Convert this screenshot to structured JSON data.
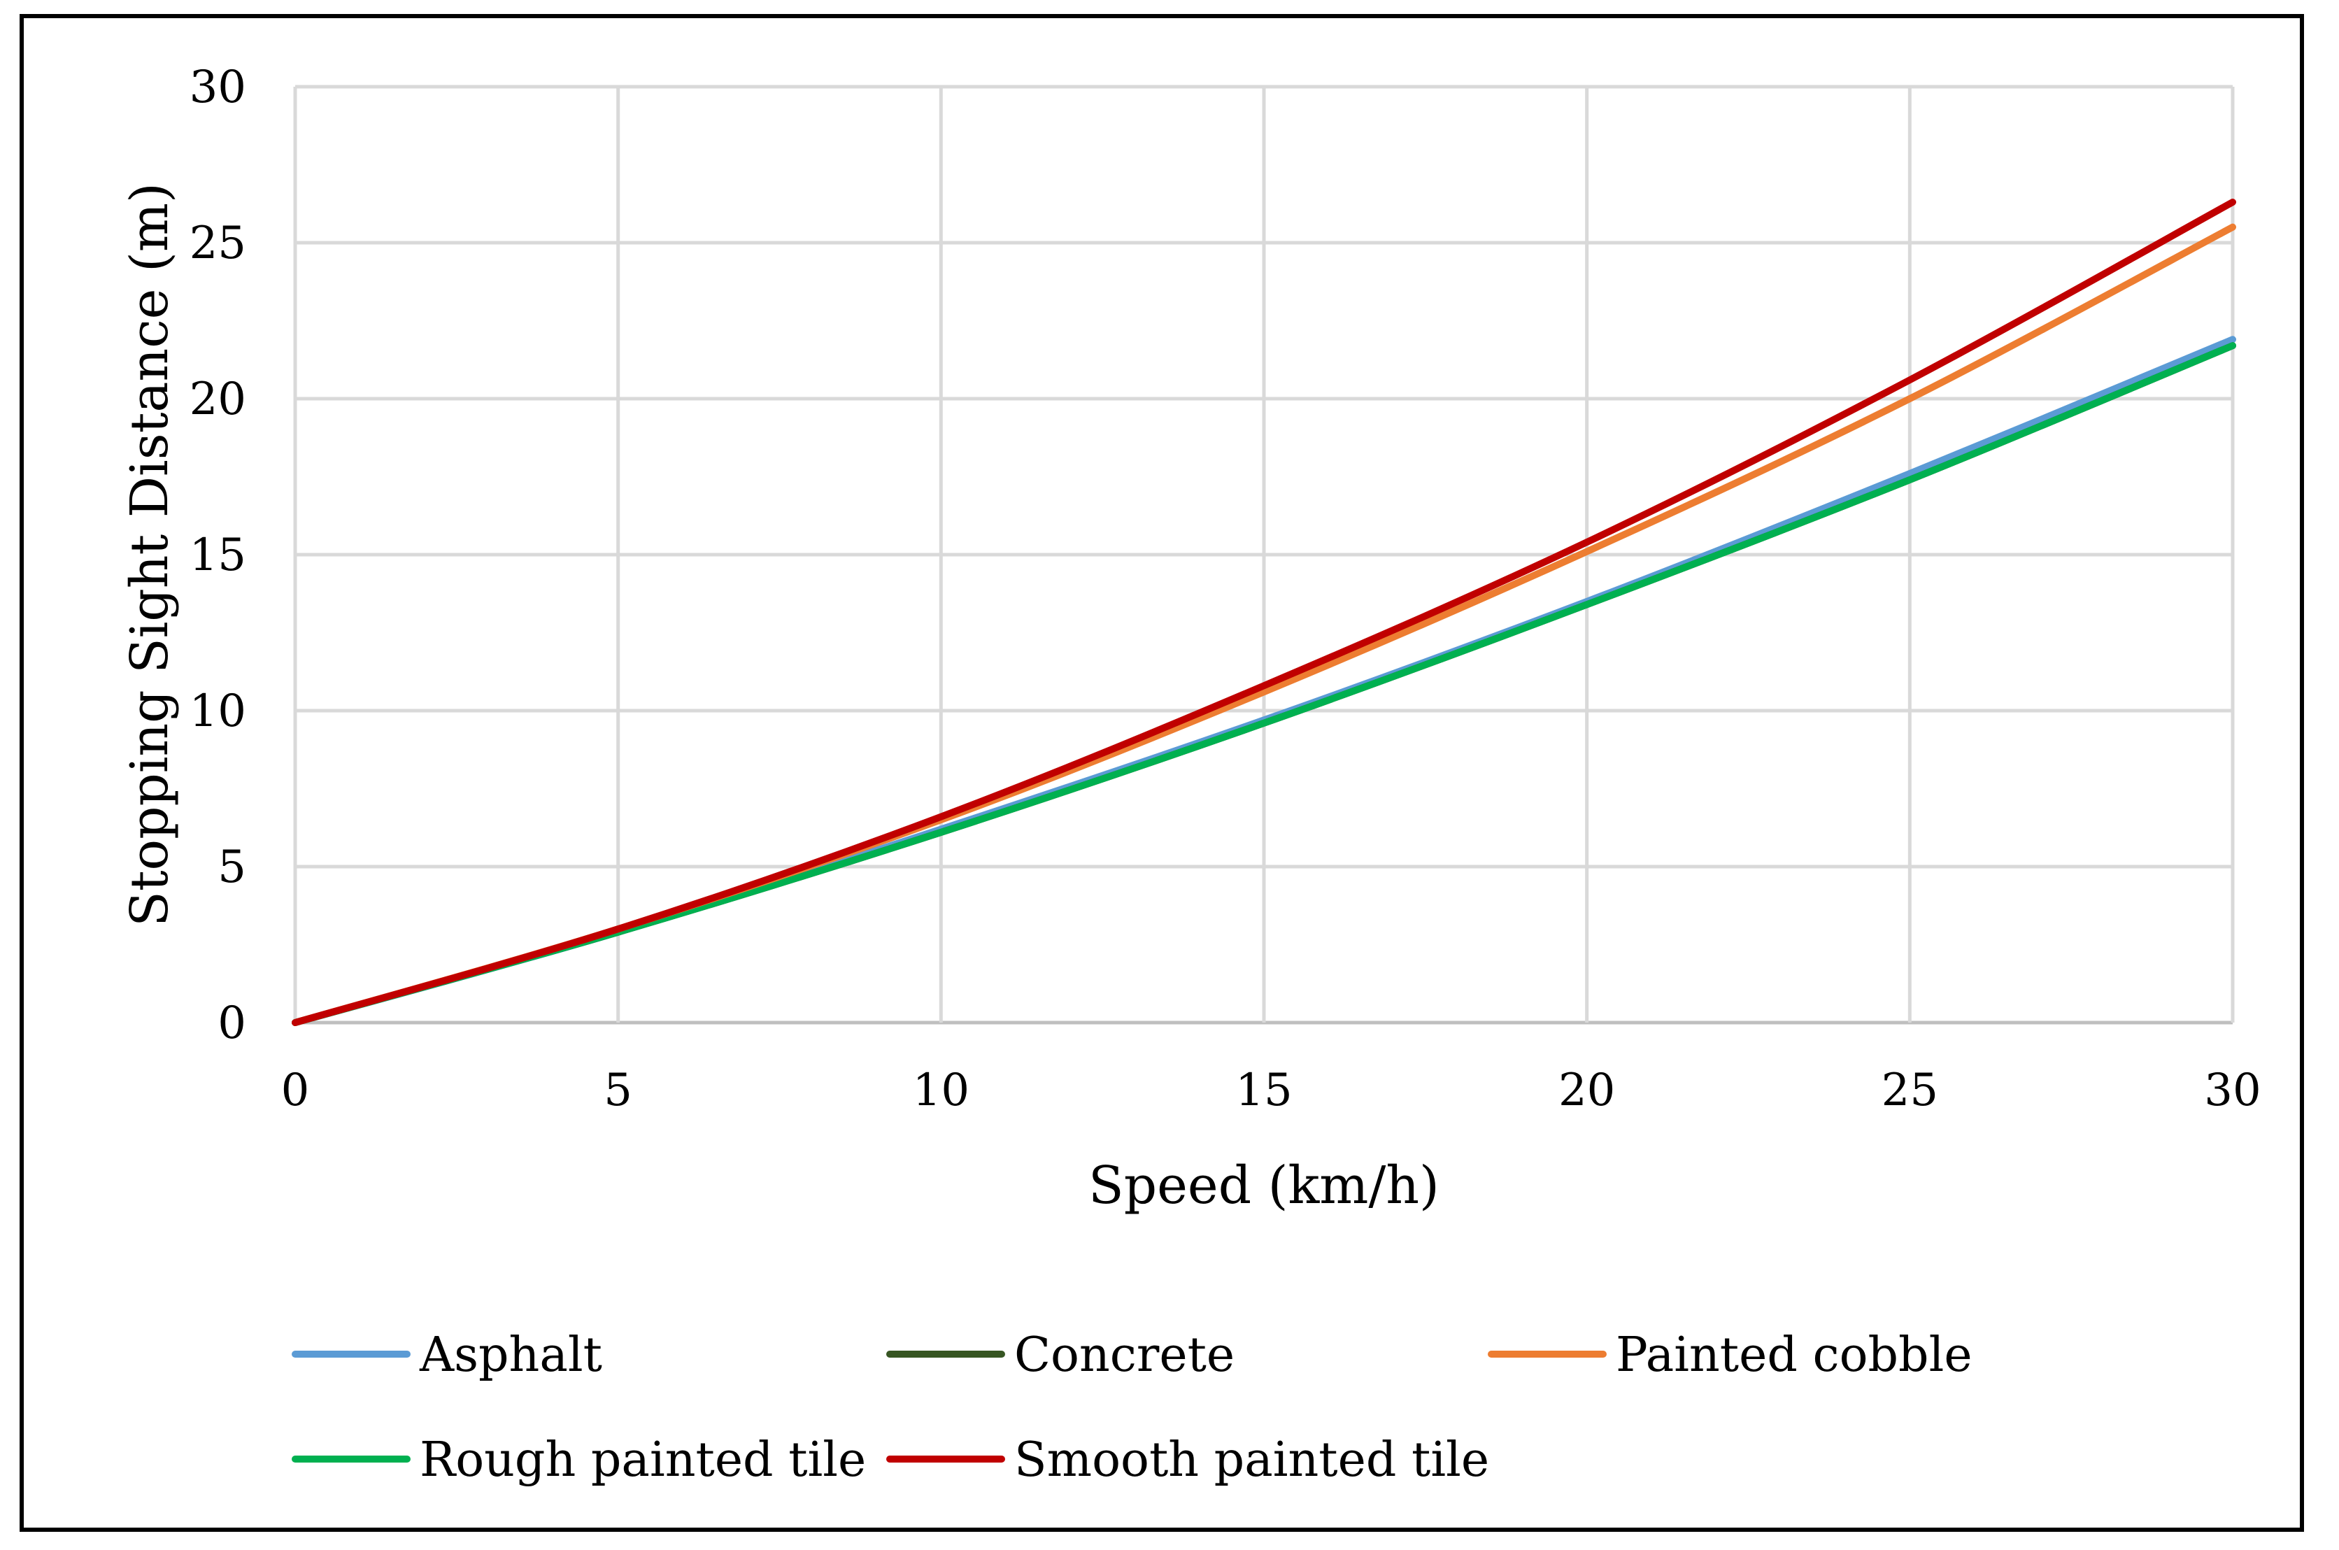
{
  "chart_data": {
    "type": "line",
    "title": "",
    "xlabel": "Speed (km/h)",
    "ylabel": "Stopping Sight Distance (m)",
    "xlim": [
      0,
      30
    ],
    "ylim": [
      0,
      30
    ],
    "xticks": [
      0,
      5,
      10,
      15,
      20,
      25,
      30
    ],
    "yticks": [
      0,
      5,
      10,
      15,
      20,
      25,
      30
    ],
    "xtick_labels": [
      "0",
      "5",
      "10",
      "15",
      "20",
      "25",
      "30"
    ],
    "ytick_labels": [
      "0",
      "5",
      "10",
      "15",
      "20",
      "25",
      "30"
    ],
    "grid": true,
    "legend_position": "bottom",
    "x": [
      0,
      5,
      10,
      15,
      20,
      25,
      30
    ],
    "series": [
      {
        "name": "Asphalt",
        "color": "#5B9BD5",
        "values": [
          0,
          2.9,
          6.2,
          9.7,
          13.5,
          17.6,
          21.9
        ]
      },
      {
        "name": "Concrete",
        "color": "#375623",
        "values": [
          0,
          2.9,
          6.1,
          9.6,
          13.4,
          17.4,
          21.7
        ]
      },
      {
        "name": "Painted cobble",
        "color": "#ED7D31",
        "values": [
          0,
          3.0,
          6.5,
          10.6,
          15.1,
          20.0,
          25.5
        ]
      },
      {
        "name": "Rough painted tile",
        "color": "#00B050",
        "values": [
          0,
          2.9,
          6.1,
          9.6,
          13.4,
          17.4,
          21.7
        ]
      },
      {
        "name": "Smooth painted tile",
        "color": "#C00000",
        "values": [
          0,
          3.0,
          6.6,
          10.8,
          15.4,
          20.6,
          26.3
        ]
      }
    ]
  }
}
